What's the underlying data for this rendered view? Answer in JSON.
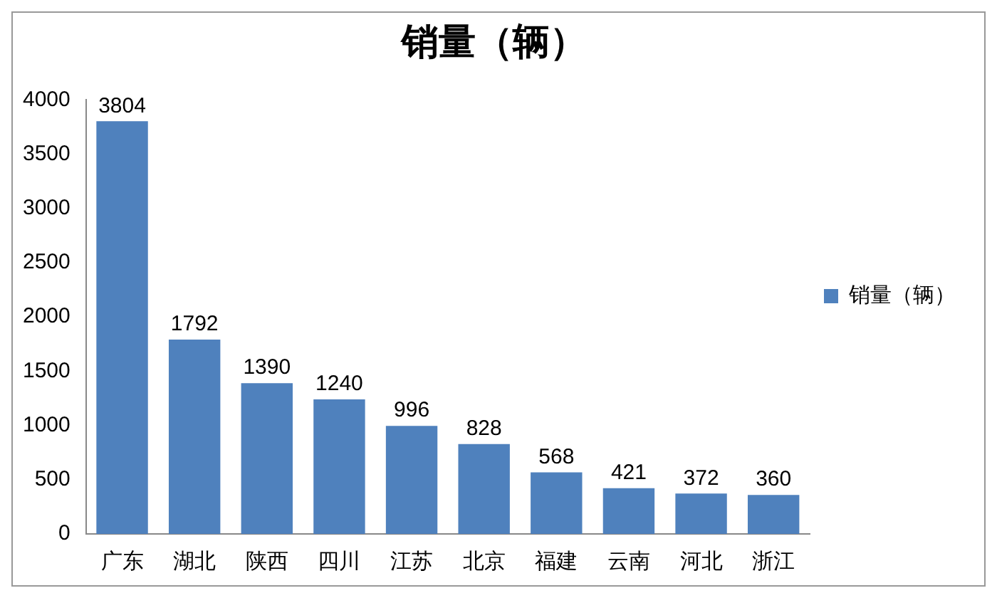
{
  "chart_data": {
    "type": "bar",
    "title": "销量（辆）",
    "categories": [
      "广东",
      "湖北",
      "陕西",
      "四川",
      "江苏",
      "北京",
      "福建",
      "云南",
      "河北",
      "浙江"
    ],
    "series": [
      {
        "name": "销量（辆）",
        "color": "#4f81bd",
        "values": [
          3804,
          1792,
          1390,
          1240,
          996,
          828,
          568,
          421,
          372,
          360
        ]
      }
    ],
    "ylim": [
      0,
      4000
    ],
    "yticks": [
      0,
      500,
      1000,
      1500,
      2000,
      2500,
      3000,
      3500,
      4000
    ],
    "grid": false,
    "legend": "right",
    "data_labels": true
  }
}
